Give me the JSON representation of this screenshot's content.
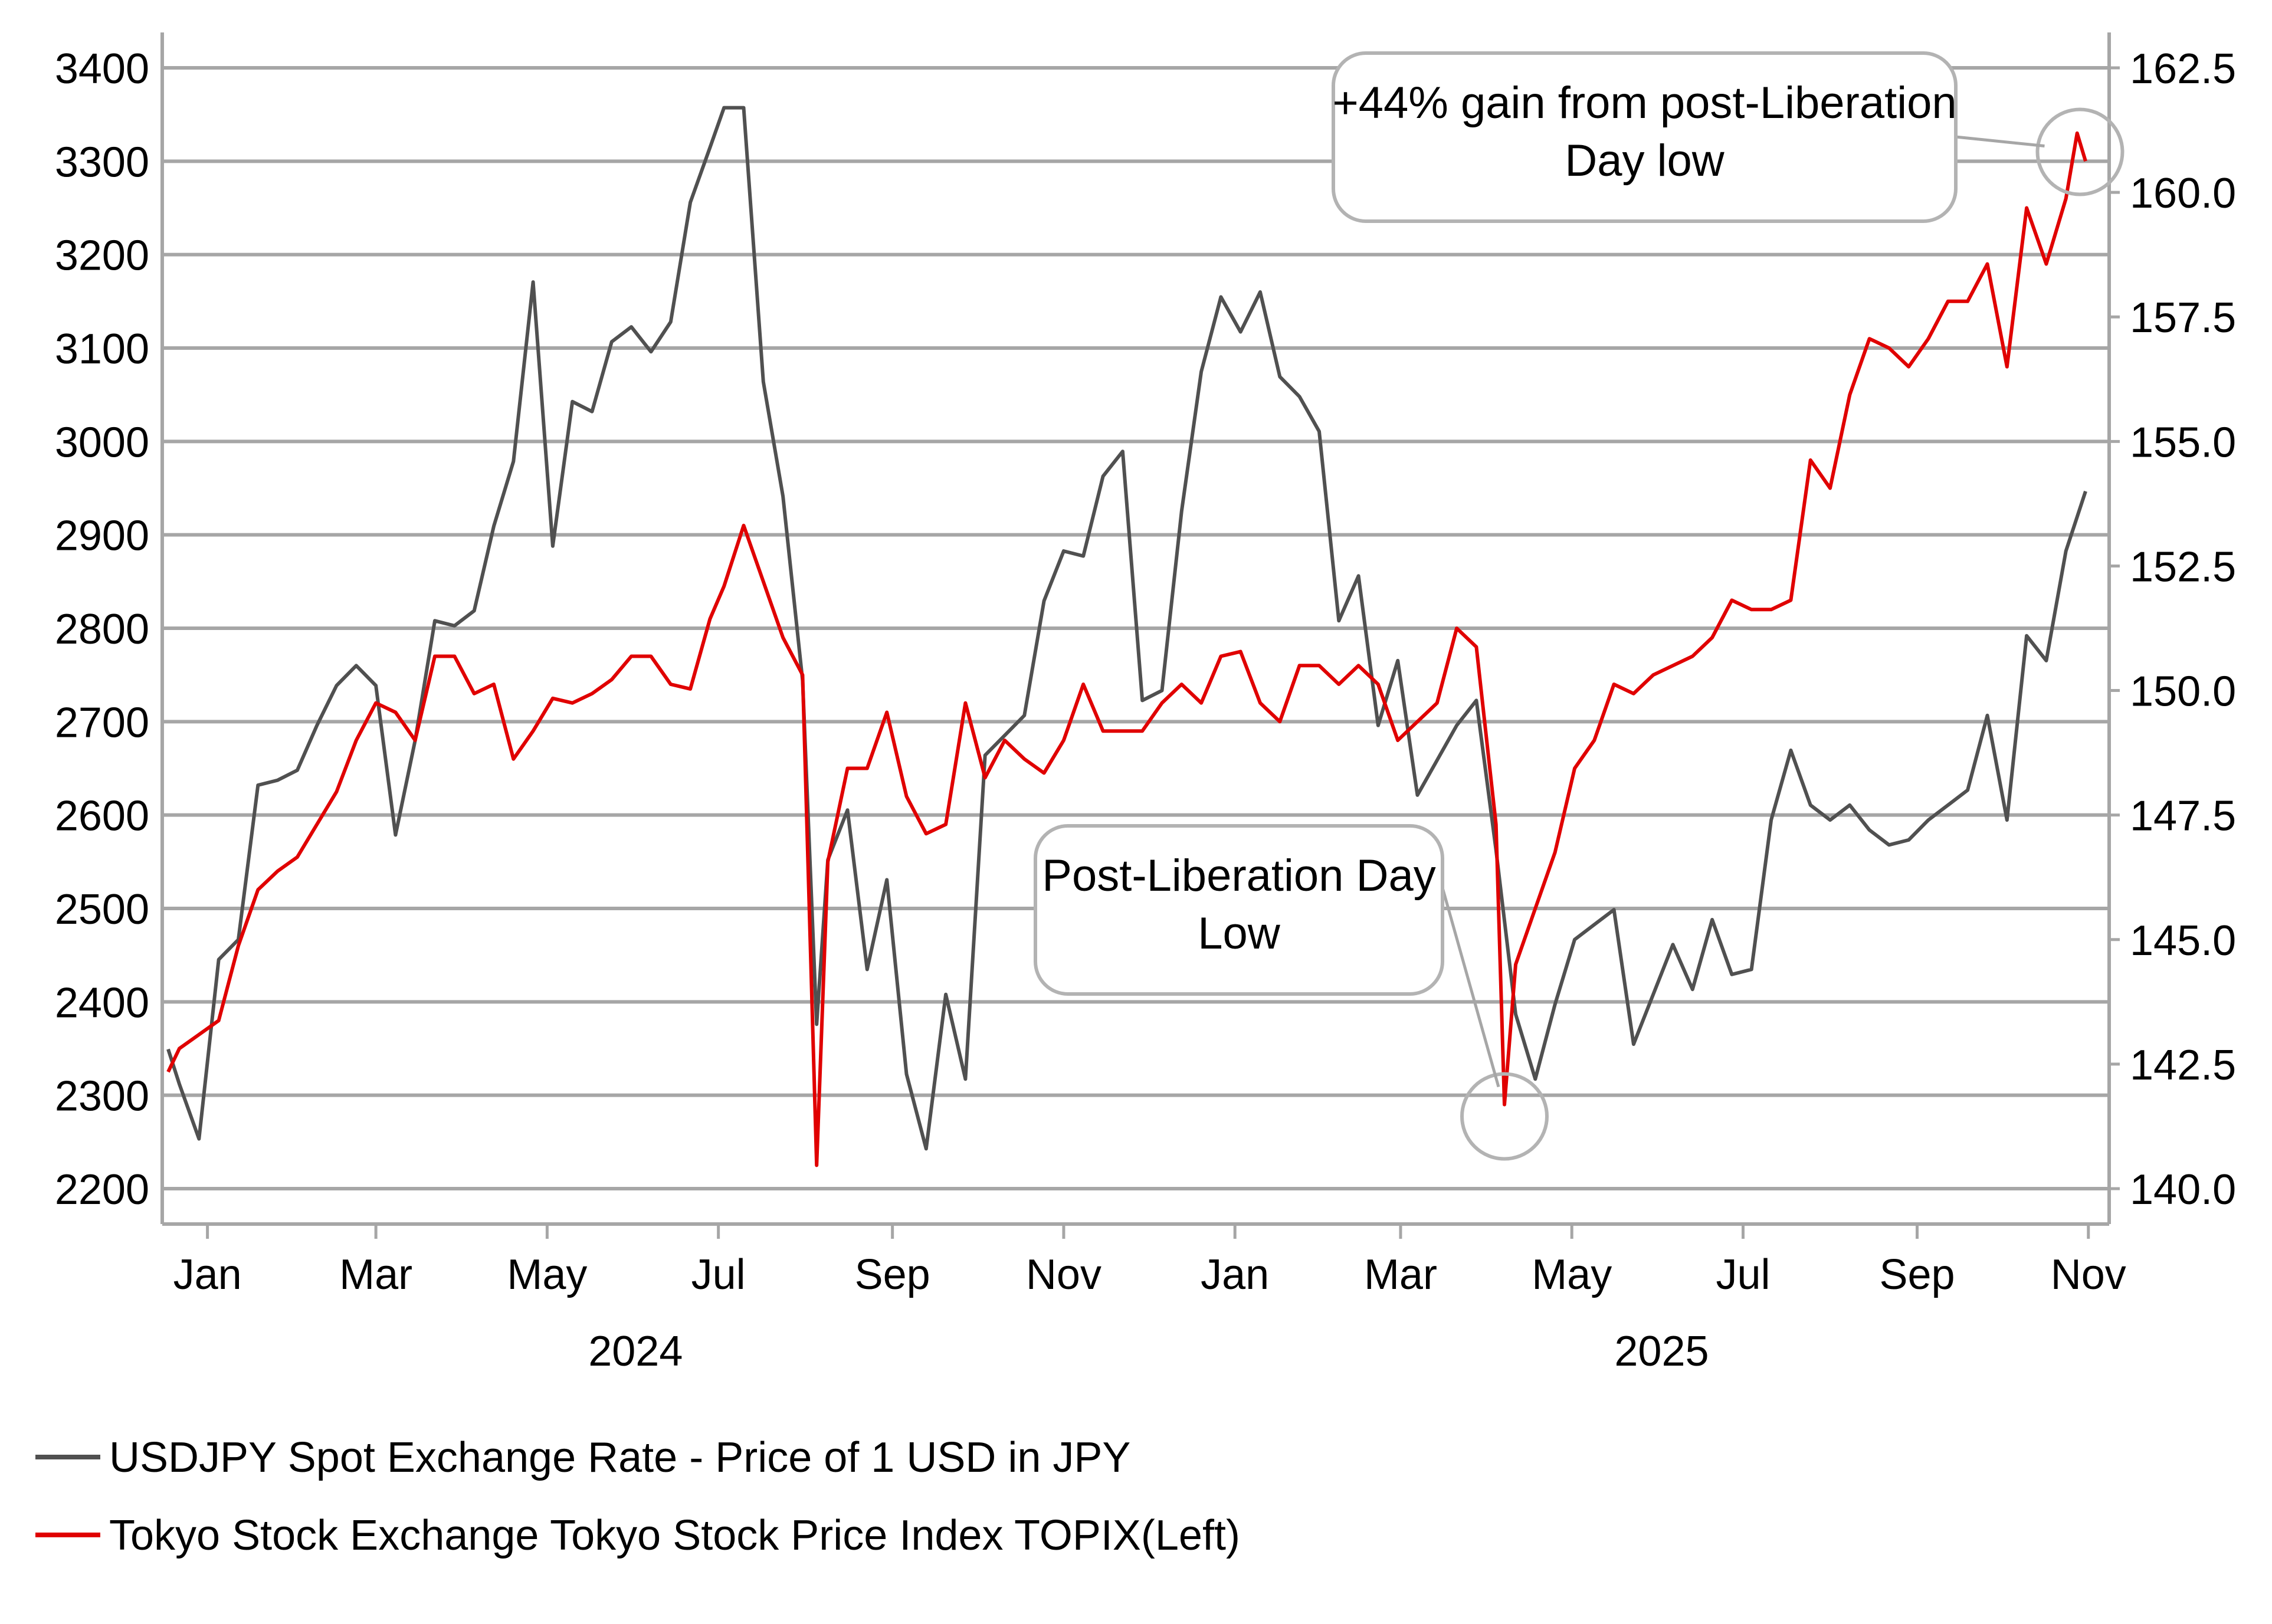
{
  "chart_data": {
    "type": "line",
    "title": "",
    "xlabel": "",
    "x_months": [
      "Jan",
      "Mar",
      "May",
      "Jul",
      "Sep",
      "Nov",
      "Jan",
      "Mar",
      "May",
      "Jul",
      "Sep",
      "Nov"
    ],
    "x_years": [
      "2024",
      "2025"
    ],
    "x_range": [
      "2023-12-18",
      "2025-10-31"
    ],
    "left_axis": {
      "ticks": [
        "3400",
        "3300",
        "3200",
        "3100",
        "3000",
        "2900",
        "2800",
        "2700",
        "2600",
        "2500",
        "2400",
        "2300",
        "2200"
      ],
      "ylim": [
        2200,
        3400
      ]
    },
    "right_axis": {
      "ticks": [
        "162.5",
        "160.0",
        "157.5",
        "155.0",
        "152.5",
        "150.0",
        "147.5",
        "145.0",
        "142.5",
        "140.0"
      ],
      "ylim": [
        140.0,
        162.5
      ]
    },
    "grid": true,
    "legend_position": "bottom-left",
    "series": [
      {
        "name": "USDJPY Spot Exchange Rate - Price of 1 USD in JPY",
        "axis": "right",
        "color": "#505050",
        "points": [
          [
            "2023-12-18",
            142.8
          ],
          [
            "2023-12-22",
            142.1
          ],
          [
            "2023-12-29",
            141.0
          ],
          [
            "2024-01-05",
            144.6
          ],
          [
            "2024-01-12",
            145.0
          ],
          [
            "2024-01-19",
            148.1
          ],
          [
            "2024-01-26",
            148.2
          ],
          [
            "2024-02-02",
            148.4
          ],
          [
            "2024-02-09",
            149.3
          ],
          [
            "2024-02-16",
            150.1
          ],
          [
            "2024-02-23",
            150.5
          ],
          [
            "2024-03-01",
            150.1
          ],
          [
            "2024-03-08",
            147.1
          ],
          [
            "2024-03-15",
            149.0
          ],
          [
            "2024-03-22",
            151.4
          ],
          [
            "2024-03-29",
            151.3
          ],
          [
            "2024-04-05",
            151.6
          ],
          [
            "2024-04-12",
            153.3
          ],
          [
            "2024-04-19",
            154.6
          ],
          [
            "2024-04-26",
            158.2
          ],
          [
            "2024-05-03",
            152.9
          ],
          [
            "2024-05-10",
            155.8
          ],
          [
            "2024-05-17",
            155.6
          ],
          [
            "2024-05-24",
            157.0
          ],
          [
            "2024-05-31",
            157.3
          ],
          [
            "2024-06-07",
            156.8
          ],
          [
            "2024-06-14",
            157.4
          ],
          [
            "2024-06-21",
            159.8
          ],
          [
            "2024-06-28",
            160.9
          ],
          [
            "2024-07-03",
            161.7
          ],
          [
            "2024-07-10",
            161.7
          ],
          [
            "2024-07-17",
            156.2
          ],
          [
            "2024-07-24",
            153.9
          ],
          [
            "2024-07-31",
            150.2
          ],
          [
            "2024-08-05",
            143.3
          ],
          [
            "2024-08-09",
            146.6
          ],
          [
            "2024-08-16",
            147.6
          ],
          [
            "2024-08-23",
            144.4
          ],
          [
            "2024-08-30",
            146.2
          ],
          [
            "2024-09-06",
            142.3
          ],
          [
            "2024-09-13",
            140.8
          ],
          [
            "2024-09-20",
            143.9
          ],
          [
            "2024-09-27",
            142.2
          ],
          [
            "2024-10-04",
            148.7
          ],
          [
            "2024-10-11",
            149.1
          ],
          [
            "2024-10-18",
            149.5
          ],
          [
            "2024-10-25",
            151.8
          ],
          [
            "2024-11-01",
            152.8
          ],
          [
            "2024-11-08",
            152.7
          ],
          [
            "2024-11-15",
            154.3
          ],
          [
            "2024-11-22",
            154.8
          ],
          [
            "2024-11-29",
            149.8
          ],
          [
            "2024-12-06",
            150.0
          ],
          [
            "2024-12-13",
            153.6
          ],
          [
            "2024-12-20",
            156.4
          ],
          [
            "2024-12-27",
            157.9
          ],
          [
            "2025-01-03",
            157.2
          ],
          [
            "2025-01-10",
            158.0
          ],
          [
            "2025-01-17",
            156.3
          ],
          [
            "2025-01-24",
            155.9
          ],
          [
            "2025-01-31",
            155.2
          ],
          [
            "2025-02-07",
            151.4
          ],
          [
            "2025-02-14",
            152.3
          ],
          [
            "2025-02-21",
            149.3
          ],
          [
            "2025-02-28",
            150.6
          ],
          [
            "2025-03-07",
            147.9
          ],
          [
            "2025-03-14",
            148.6
          ],
          [
            "2025-03-21",
            149.3
          ],
          [
            "2025-03-28",
            149.8
          ],
          [
            "2025-04-04",
            146.8
          ],
          [
            "2025-04-11",
            143.5
          ],
          [
            "2025-04-18",
            142.2
          ],
          [
            "2025-04-25",
            143.7
          ],
          [
            "2025-05-02",
            145.0
          ],
          [
            "2025-05-09",
            145.3
          ],
          [
            "2025-05-16",
            145.6
          ],
          [
            "2025-05-23",
            142.9
          ],
          [
            "2025-05-30",
            143.9
          ],
          [
            "2025-06-06",
            144.9
          ],
          [
            "2025-06-13",
            144.0
          ],
          [
            "2025-06-20",
            145.4
          ],
          [
            "2025-06-27",
            144.3
          ],
          [
            "2025-07-04",
            144.4
          ],
          [
            "2025-07-11",
            147.4
          ],
          [
            "2025-07-18",
            148.8
          ],
          [
            "2025-07-25",
            147.7
          ],
          [
            "2025-08-01",
            147.4
          ],
          [
            "2025-08-08",
            147.7
          ],
          [
            "2025-08-15",
            147.2
          ],
          [
            "2025-08-22",
            146.9
          ],
          [
            "2025-08-29",
            147.0
          ],
          [
            "2025-09-05",
            147.4
          ],
          [
            "2025-09-12",
            147.7
          ],
          [
            "2025-09-19",
            148.0
          ],
          [
            "2025-09-26",
            149.5
          ],
          [
            "2025-10-03",
            147.4
          ],
          [
            "2025-10-10",
            151.1
          ],
          [
            "2025-10-17",
            150.6
          ],
          [
            "2025-10-24",
            152.8
          ],
          [
            "2025-10-31",
            154.0
          ]
        ]
      },
      {
        "name": "Tokyo Stock Exchange Tokyo Stock Price Index TOPIX(Left)",
        "axis": "left",
        "color": "#e00000",
        "points": [
          [
            "2023-12-18",
            2325
          ],
          [
            "2023-12-22",
            2350
          ],
          [
            "2023-12-29",
            2365
          ],
          [
            "2024-01-05",
            2380
          ],
          [
            "2024-01-12",
            2460
          ],
          [
            "2024-01-19",
            2520
          ],
          [
            "2024-01-26",
            2540
          ],
          [
            "2024-02-02",
            2555
          ],
          [
            "2024-02-09",
            2590
          ],
          [
            "2024-02-16",
            2625
          ],
          [
            "2024-02-23",
            2680
          ],
          [
            "2024-03-01",
            2720
          ],
          [
            "2024-03-08",
            2710
          ],
          [
            "2024-03-15",
            2680
          ],
          [
            "2024-03-22",
            2770
          ],
          [
            "2024-03-29",
            2770
          ],
          [
            "2024-04-05",
            2730
          ],
          [
            "2024-04-12",
            2740
          ],
          [
            "2024-04-19",
            2660
          ],
          [
            "2024-04-26",
            2690
          ],
          [
            "2024-05-03",
            2725
          ],
          [
            "2024-05-10",
            2720
          ],
          [
            "2024-05-17",
            2730
          ],
          [
            "2024-05-24",
            2745
          ],
          [
            "2024-05-31",
            2770
          ],
          [
            "2024-06-07",
            2770
          ],
          [
            "2024-06-14",
            2740
          ],
          [
            "2024-06-21",
            2735
          ],
          [
            "2024-06-28",
            2810
          ],
          [
            "2024-07-03",
            2845
          ],
          [
            "2024-07-10",
            2910
          ],
          [
            "2024-07-17",
            2850
          ],
          [
            "2024-07-24",
            2790
          ],
          [
            "2024-07-31",
            2750
          ],
          [
            "2024-08-05",
            2225
          ],
          [
            "2024-08-09",
            2550
          ],
          [
            "2024-08-16",
            2650
          ],
          [
            "2024-08-23",
            2650
          ],
          [
            "2024-08-30",
            2710
          ],
          [
            "2024-09-06",
            2620
          ],
          [
            "2024-09-13",
            2580
          ],
          [
            "2024-09-20",
            2590
          ],
          [
            "2024-09-27",
            2720
          ],
          [
            "2024-10-04",
            2640
          ],
          [
            "2024-10-11",
            2680
          ],
          [
            "2024-10-18",
            2660
          ],
          [
            "2024-10-25",
            2645
          ],
          [
            "2024-11-01",
            2680
          ],
          [
            "2024-11-08",
            2740
          ],
          [
            "2024-11-15",
            2690
          ],
          [
            "2024-11-22",
            2690
          ],
          [
            "2024-11-29",
            2690
          ],
          [
            "2024-12-06",
            2720
          ],
          [
            "2024-12-13",
            2740
          ],
          [
            "2024-12-20",
            2720
          ],
          [
            "2024-12-27",
            2770
          ],
          [
            "2025-01-03",
            2775
          ],
          [
            "2025-01-10",
            2720
          ],
          [
            "2025-01-17",
            2700
          ],
          [
            "2025-01-24",
            2760
          ],
          [
            "2025-01-31",
            2760
          ],
          [
            "2025-02-07",
            2740
          ],
          [
            "2025-02-14",
            2760
          ],
          [
            "2025-02-21",
            2740
          ],
          [
            "2025-02-28",
            2680
          ],
          [
            "2025-03-07",
            2700
          ],
          [
            "2025-03-14",
            2720
          ],
          [
            "2025-03-21",
            2800
          ],
          [
            "2025-03-28",
            2780
          ],
          [
            "2025-04-04",
            2590
          ],
          [
            "2025-04-07",
            2290
          ],
          [
            "2025-04-11",
            2440
          ],
          [
            "2025-04-18",
            2500
          ],
          [
            "2025-04-25",
            2560
          ],
          [
            "2025-05-02",
            2650
          ],
          [
            "2025-05-09",
            2680
          ],
          [
            "2025-05-16",
            2740
          ],
          [
            "2025-05-23",
            2730
          ],
          [
            "2025-05-30",
            2750
          ],
          [
            "2025-06-06",
            2760
          ],
          [
            "2025-06-13",
            2770
          ],
          [
            "2025-06-20",
            2790
          ],
          [
            "2025-06-27",
            2830
          ],
          [
            "2025-07-04",
            2820
          ],
          [
            "2025-07-11",
            2820
          ],
          [
            "2025-07-18",
            2830
          ],
          [
            "2025-07-25",
            2980
          ],
          [
            "2025-08-01",
            2950
          ],
          [
            "2025-08-08",
            3050
          ],
          [
            "2025-08-15",
            3110
          ],
          [
            "2025-08-22",
            3100
          ],
          [
            "2025-08-29",
            3080
          ],
          [
            "2025-09-05",
            3110
          ],
          [
            "2025-09-12",
            3150
          ],
          [
            "2025-09-19",
            3150
          ],
          [
            "2025-09-26",
            3190
          ],
          [
            "2025-10-03",
            3080
          ],
          [
            "2025-10-10",
            3250
          ],
          [
            "2025-10-17",
            3190
          ],
          [
            "2025-10-24",
            3260
          ],
          [
            "2025-10-28",
            3330
          ],
          [
            "2025-10-31",
            3300
          ]
        ]
      }
    ],
    "annotations": [
      {
        "text_lines": [
          "Post-Liberation Day",
          "Low"
        ],
        "target": {
          "date": "2025-04-07",
          "topix": 2290
        }
      },
      {
        "text_lines": [
          "+44% gain from post-Liberation",
          "Day low"
        ],
        "target": {
          "date": "2025-10-29",
          "topix": 3310
        }
      }
    ]
  }
}
